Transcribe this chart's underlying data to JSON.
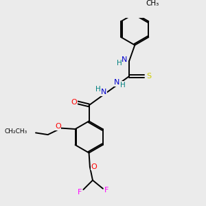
{
  "bg_color": "#ebebeb",
  "colors": {
    "C": "#000000",
    "N": "#0000cc",
    "O": "#ff0000",
    "S": "#cccc00",
    "F": "#ff00ff",
    "H": "#008080",
    "bond": "#000000"
  },
  "layout": {
    "xlim": [
      0,
      10
    ],
    "ylim": [
      0,
      10
    ],
    "figsize": [
      3.0,
      3.0
    ],
    "dpi": 100
  }
}
